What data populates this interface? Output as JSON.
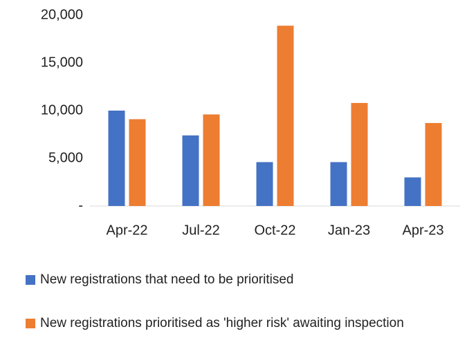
{
  "chart_data": {
    "type": "bar",
    "categories": [
      "Apr-22",
      "Jul-22",
      "Oct-22",
      "Jan-23",
      "Apr-23"
    ],
    "series": [
      {
        "name": "New registrations that need to be prioritised",
        "color": "#4472c4",
        "values": [
          10000,
          7400,
          4600,
          4600,
          3000
        ]
      },
      {
        "name": "New registrations prioritised as 'higher risk' awaiting inspection",
        "color": "#ed7d31",
        "values": [
          9100,
          9600,
          18900,
          10800,
          8700
        ]
      }
    ],
    "ylim": [
      0,
      20000
    ],
    "yticks": [
      {
        "value": 0,
        "label": "-"
      },
      {
        "value": 5000,
        "label": "5,000"
      },
      {
        "value": 10000,
        "label": "10,000"
      },
      {
        "value": 15000,
        "label": "15,000"
      },
      {
        "value": 20000,
        "label": "20,000"
      }
    ],
    "grid": false,
    "legend": "bottom"
  }
}
